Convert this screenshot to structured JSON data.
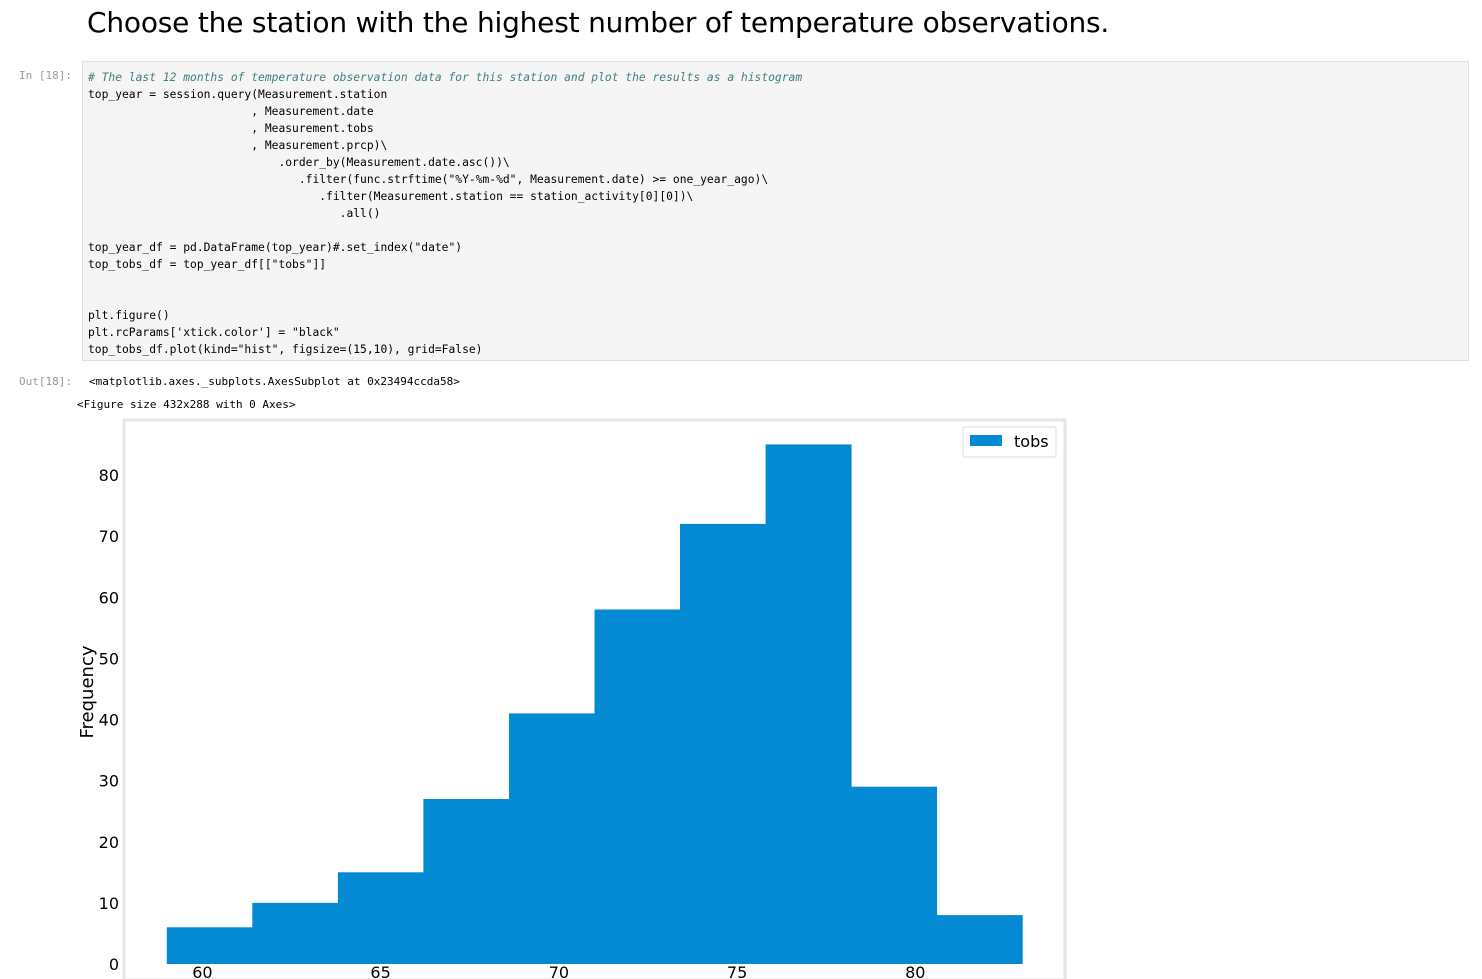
{
  "heading": "Choose the station with the highest number of temperature observations.",
  "cell_in_prompt": "In [18]:",
  "cell_out_prompt": "Out[18]:",
  "code": {
    "comment": "# The last 12 months of temperature observation data for this station and plot the results as a histogram",
    "line_top_year": "top_year = session.query(Measurement.station",
    "line_date": ", Measurement.date",
    "line_tobs": ", Measurement.tobs",
    "line_prcp": ", Measurement.prcp)\\",
    "line_order": ".order_by(Measurement.date.asc())\\",
    "line_filter1": ".filter(func.strftime(\"%Y-%m-%d\", Measurement.date) >= one_year_ago)\\",
    "line_filter2": ".filter(Measurement.station == station_activity[0][0])\\",
    "line_all": ".all()",
    "line_df": "top_year_df = pd.DataFrame(top_year)#.set_index(\"date\")",
    "line_tobs_df": "top_tobs_df = top_year_df[[\"tobs\"]]",
    "line_figure": "plt.figure()",
    "line_rc": "plt.rcParams['xtick.color'] = \"black\"",
    "line_plot": "top_tobs_df.plot(kind=\"hist\", figsize=(15,10), grid=False)"
  },
  "output_repr": "<matplotlib.axes._subplots.AxesSubplot at 0x23494ccda58>",
  "output_figure_size": "<Figure size 432x288 with 0 Axes>",
  "colors": {
    "bar": "#038ad3",
    "axes_edge": "#e6e6e6",
    "code_bg": "#f5f5f5"
  },
  "chart_data": {
    "type": "bar",
    "subtype": "histogram",
    "series": [
      {
        "name": "tobs",
        "bins": [
          {
            "start": 59.0,
            "end": 61.4,
            "count": 6
          },
          {
            "start": 61.4,
            "end": 63.8,
            "count": 10
          },
          {
            "start": 63.8,
            "end": 66.2,
            "count": 15
          },
          {
            "start": 66.2,
            "end": 68.6,
            "count": 27
          },
          {
            "start": 68.6,
            "end": 71.0,
            "count": 41
          },
          {
            "start": 71.0,
            "end": 73.4,
            "count": 58
          },
          {
            "start": 73.4,
            "end": 75.8,
            "count": 72
          },
          {
            "start": 75.8,
            "end": 78.2,
            "count": 85
          },
          {
            "start": 78.2,
            "end": 80.6,
            "count": 29
          },
          {
            "start": 80.6,
            "end": 83.0,
            "count": 8
          }
        ]
      }
    ],
    "xlim": [
      57.8,
      84.2
    ],
    "ylim": [
      0,
      89
    ],
    "xticks": [
      60,
      65,
      70,
      75,
      80
    ],
    "yticks": [
      0,
      10,
      20,
      30,
      40,
      50,
      60,
      70,
      80
    ],
    "xlabel": "",
    "ylabel": "Frequency",
    "title": "",
    "grid": false,
    "legend": {
      "position": "top-right",
      "entries": [
        "tobs"
      ]
    }
  }
}
